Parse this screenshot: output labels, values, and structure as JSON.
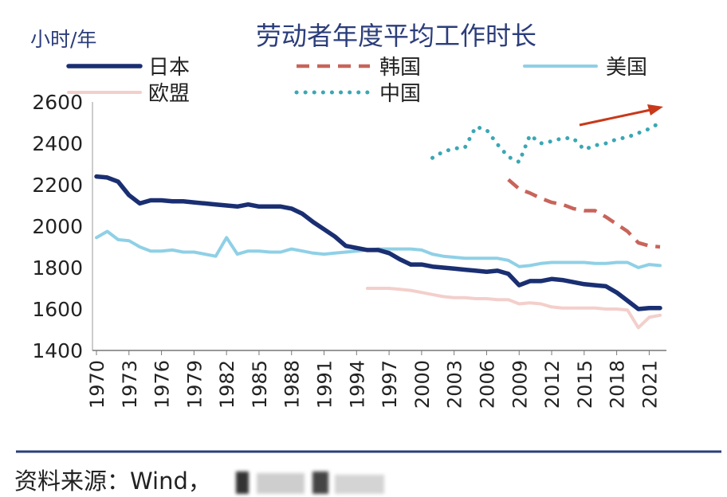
{
  "chart_data": {
    "type": "line",
    "title": "劳动者年度平均工作时长",
    "ylabel": "小时/年",
    "xlabel": "",
    "ylim": [
      1400,
      2600
    ],
    "yticks": [
      1400,
      1600,
      1800,
      2000,
      2200,
      2400,
      2600
    ],
    "xlim": [
      1970,
      2022
    ],
    "xticks": [
      1970,
      1973,
      1976,
      1979,
      1982,
      1985,
      1988,
      1991,
      1994,
      1997,
      2000,
      2003,
      2006,
      2009,
      2012,
      2015,
      2018,
      2021
    ],
    "grid": false,
    "legend_position": "top",
    "series": [
      {
        "name": "日本",
        "style": "solid",
        "color": "#1a2f72",
        "x": [
          1970,
          1971,
          1972,
          1973,
          1974,
          1975,
          1976,
          1977,
          1978,
          1979,
          1980,
          1981,
          1982,
          1983,
          1984,
          1985,
          1986,
          1987,
          1988,
          1989,
          1990,
          1991,
          1992,
          1993,
          1994,
          1995,
          1996,
          1997,
          1998,
          1999,
          2000,
          2001,
          2002,
          2003,
          2004,
          2005,
          2006,
          2007,
          2008,
          2009,
          2010,
          2011,
          2012,
          2013,
          2014,
          2015,
          2016,
          2017,
          2018,
          2019,
          2020,
          2021,
          2022
        ],
        "values": [
          2240,
          2235,
          2215,
          2150,
          2110,
          2125,
          2125,
          2120,
          2120,
          2115,
          2110,
          2105,
          2100,
          2095,
          2105,
          2095,
          2095,
          2095,
          2085,
          2060,
          2020,
          1985,
          1950,
          1905,
          1895,
          1885,
          1885,
          1870,
          1840,
          1815,
          1815,
          1805,
          1800,
          1795,
          1790,
          1785,
          1780,
          1785,
          1770,
          1715,
          1735,
          1735,
          1745,
          1740,
          1730,
          1720,
          1715,
          1710,
          1680,
          1640,
          1600,
          1605,
          1605
        ]
      },
      {
        "name": "韩国",
        "style": "dashed",
        "color": "#c8645a",
        "x": [
          2008,
          2009,
          2010,
          2011,
          2012,
          2013,
          2014,
          2015,
          2016,
          2017,
          2018,
          2019,
          2020,
          2021,
          2022
        ],
        "values": [
          2225,
          2180,
          2160,
          2135,
          2115,
          2105,
          2085,
          2075,
          2075,
          2045,
          2010,
          1975,
          1920,
          1905,
          1900
        ]
      },
      {
        "name": "美国",
        "style": "solid",
        "color": "#8fd0e6",
        "x": [
          1970,
          1971,
          1972,
          1973,
          1974,
          1975,
          1976,
          1977,
          1978,
          1979,
          1980,
          1981,
          1982,
          1983,
          1984,
          1985,
          1986,
          1987,
          1988,
          1989,
          1990,
          1991,
          1992,
          1993,
          1994,
          1995,
          1996,
          1997,
          1998,
          1999,
          2000,
          2001,
          2002,
          2003,
          2004,
          2005,
          2006,
          2007,
          2008,
          2009,
          2010,
          2011,
          2012,
          2013,
          2014,
          2015,
          2016,
          2017,
          2018,
          2019,
          2020,
          2021,
          2022
        ],
        "values": [
          1945,
          1975,
          1935,
          1930,
          1900,
          1880,
          1880,
          1885,
          1875,
          1875,
          1865,
          1855,
          1945,
          1865,
          1880,
          1880,
          1875,
          1875,
          1890,
          1880,
          1870,
          1865,
          1870,
          1875,
          1880,
          1885,
          1890,
          1890,
          1890,
          1890,
          1885,
          1865,
          1855,
          1850,
          1845,
          1845,
          1845,
          1845,
          1835,
          1805,
          1810,
          1820,
          1825,
          1825,
          1825,
          1825,
          1820,
          1820,
          1825,
          1825,
          1800,
          1815,
          1810
        ]
      },
      {
        "name": "欧盟",
        "style": "solid",
        "color": "#f3cfcb",
        "x": [
          1995,
          1996,
          1997,
          1998,
          1999,
          2000,
          2001,
          2002,
          2003,
          2004,
          2005,
          2006,
          2007,
          2008,
          2009,
          2010,
          2011,
          2012,
          2013,
          2014,
          2015,
          2016,
          2017,
          2018,
          2019,
          2020,
          2021,
          2022
        ],
        "values": [
          1700,
          1700,
          1700,
          1695,
          1690,
          1680,
          1670,
          1660,
          1655,
          1655,
          1650,
          1650,
          1645,
          1645,
          1625,
          1630,
          1625,
          1610,
          1605,
          1605,
          1605,
          1605,
          1600,
          1600,
          1595,
          1510,
          1560,
          1570
        ]
      },
      {
        "name": "中国",
        "style": "dotted",
        "color": "#3aa7b4",
        "x": [
          2001,
          2002,
          2003,
          2004,
          2005,
          2006,
          2007,
          2008,
          2009,
          2010,
          2011,
          2012,
          2013,
          2014,
          2015,
          2016,
          2017,
          2018,
          2019,
          2020,
          2021,
          2022
        ],
        "values": [
          2330,
          2360,
          2375,
          2380,
          2480,
          2465,
          2395,
          2335,
          2310,
          2440,
          2400,
          2410,
          2425,
          2425,
          2370,
          2390,
          2400,
          2420,
          2430,
          2450,
          2470,
          2500
        ]
      }
    ],
    "annotation_color": "#c8391a"
  },
  "source": {
    "label": "资料来源：Wind，"
  }
}
